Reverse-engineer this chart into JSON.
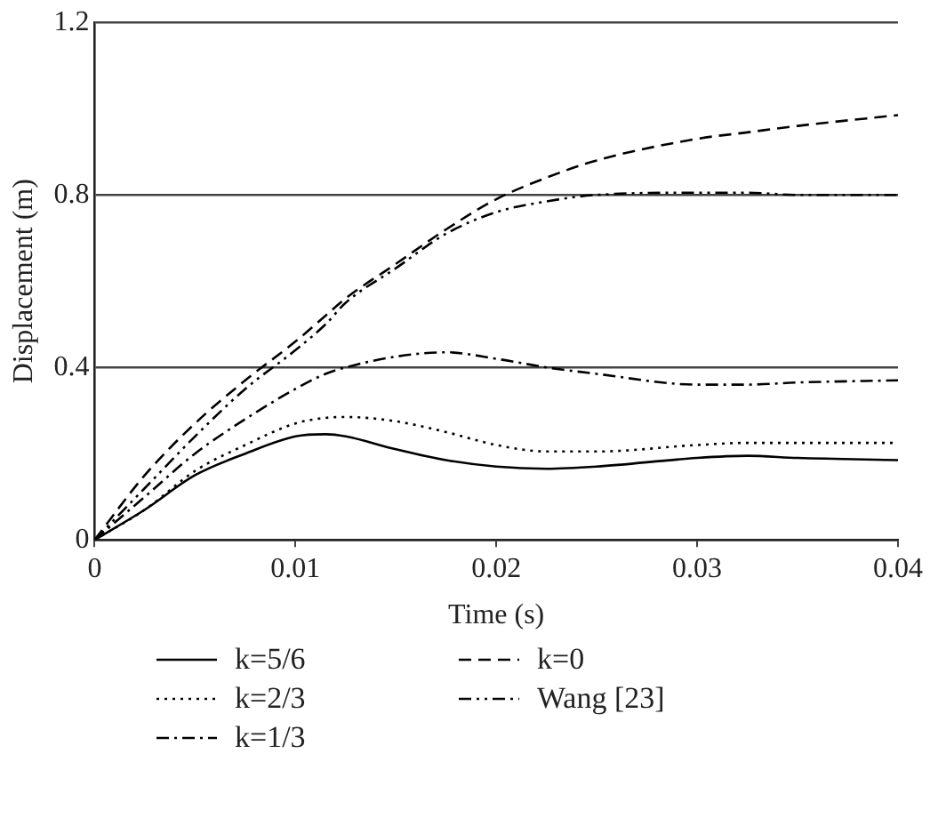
{
  "chart_data": {
    "type": "line",
    "xlabel": "Time (s)",
    "ylabel": "Displacement (m)",
    "xlim": [
      0,
      0.04
    ],
    "xticks": [
      0,
      0.01,
      0.02,
      0.03,
      0.04
    ],
    "ylim": [
      0,
      1.2
    ],
    "yticks": [
      0,
      0.4,
      0.8,
      1.2
    ],
    "grid": "y",
    "legend": "bottom",
    "marker": "none",
    "x": [
      0,
      0.0025,
      0.005,
      0.0075,
      0.01,
      0.0115,
      0.0125,
      0.015,
      0.0175,
      0.02,
      0.0225,
      0.025,
      0.03,
      0.0325,
      0.035,
      0.04
    ],
    "series": [
      {
        "name": "k=5/6",
        "color": "#000000",
        "line_style": "solid",
        "values": [
          0,
          0.07,
          0.15,
          0.2,
          0.24,
          0.245,
          0.24,
          0.21,
          0.185,
          0.17,
          0.165,
          0.17,
          0.19,
          0.195,
          0.19,
          0.185
        ]
      },
      {
        "name": "k=2/3",
        "color": "#000000",
        "line_style": "dotted",
        "values": [
          0,
          0.07,
          0.16,
          0.22,
          0.27,
          0.283,
          0.285,
          0.275,
          0.25,
          0.22,
          0.205,
          0.205,
          0.22,
          0.225,
          0.225,
          0.225
        ]
      },
      {
        "name": "k=1/3",
        "color": "#000000",
        "line_style": "dashdot",
        "values": [
          0,
          0.1,
          0.2,
          0.28,
          0.35,
          0.385,
          0.4,
          0.425,
          0.435,
          0.42,
          0.4,
          0.385,
          0.36,
          0.36,
          0.365,
          0.37
        ]
      },
      {
        "name": "k=0",
        "color": "#000000",
        "line_style": "dashed",
        "values": [
          0,
          0.15,
          0.27,
          0.37,
          0.46,
          0.52,
          0.56,
          0.64,
          0.72,
          0.79,
          0.84,
          0.88,
          0.93,
          0.945,
          0.96,
          0.985
        ]
      },
      {
        "name": "Wang [23]",
        "color": "#000000",
        "line_style": "dashdotdot",
        "values": [
          0,
          0.12,
          0.24,
          0.35,
          0.44,
          0.5,
          0.55,
          0.63,
          0.71,
          0.76,
          0.785,
          0.8,
          0.805,
          0.805,
          0.8,
          0.8
        ]
      }
    ]
  }
}
